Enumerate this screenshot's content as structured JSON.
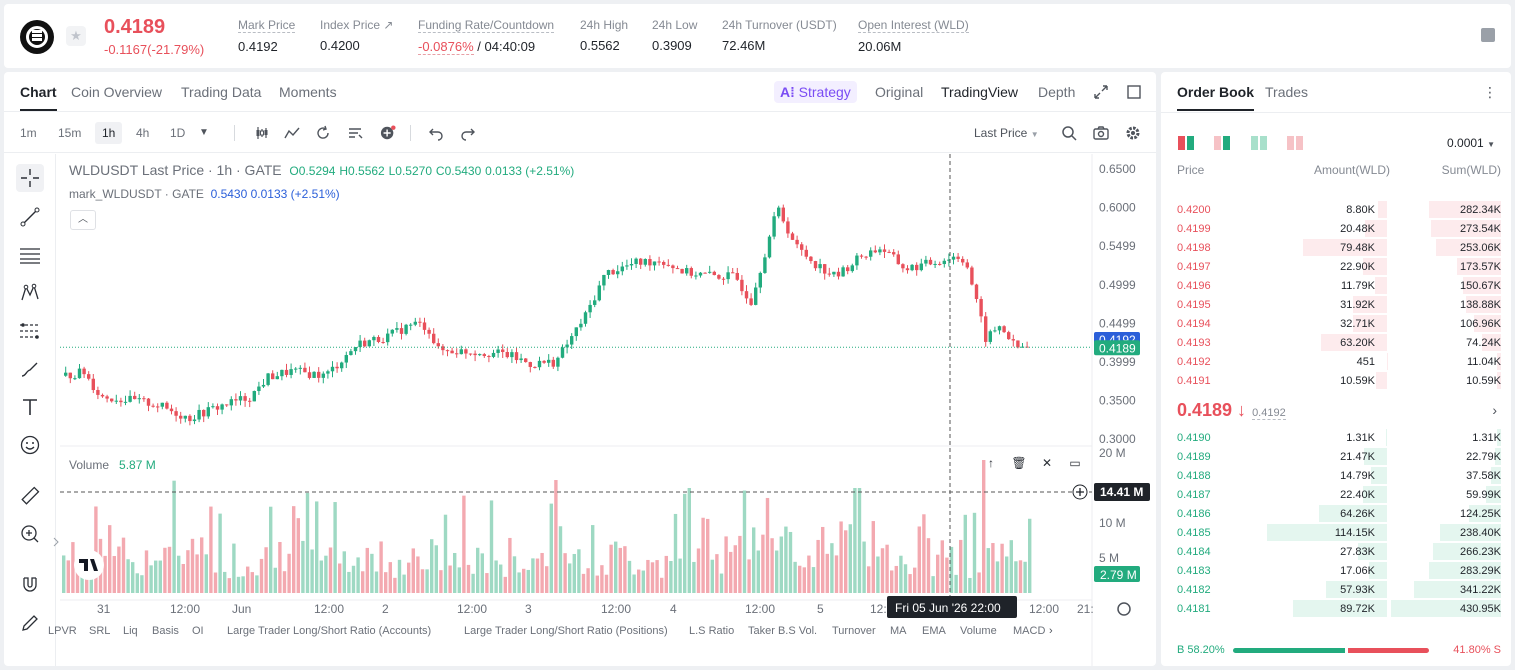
{
  "header": {
    "last_price": "0.4189",
    "change": "-0.1167(-21.79%)",
    "stats": [
      {
        "label": "Mark Price",
        "value": "0.4192"
      },
      {
        "label": "Index Price ↗",
        "value": "0.4200"
      },
      {
        "label": "Funding Rate/Countdown",
        "value_neg": "-0.0876%",
        "value": " / 04:40:09"
      },
      {
        "label": "24h High",
        "value": "0.5562"
      },
      {
        "label": "24h Low",
        "value": "0.3909"
      },
      {
        "label": "24h Turnover (USDT)",
        "value": "72.46M"
      },
      {
        "label": "Open Interest (WLD)",
        "value": "20.06M"
      }
    ]
  },
  "chart_tabs": [
    "Chart",
    "Coin Overview",
    "Trading Data",
    "Moments"
  ],
  "view_tabs": {
    "strategy": "Strategy",
    "original": "Original",
    "tradingview": "TradingView",
    "depth": "Depth"
  },
  "timeframes": [
    "1m",
    "15m",
    "1h",
    "4h",
    "1D"
  ],
  "price_source": "Last Price",
  "legend": {
    "symbol": "WLDUSDT Last Price · 1h · GATE",
    "o": "O0.5294",
    "h": "H0.5562",
    "l": "L0.5270",
    "c": "C0.5430",
    "chg": "0.0133 (+2.51%)",
    "mark_label": "mark_WLDUSDT · GATE",
    "mark_value": "0.5430 0.0133 (+2.51%)"
  },
  "volume_legend": {
    "label": "Volume",
    "value": "5.87 M"
  },
  "price_axis": [
    "0.6500",
    "0.6000",
    "0.5499",
    "0.4999",
    "0.4499",
    "0.3999",
    "0.3500",
    "0.3000"
  ],
  "price_tags": {
    "mark": "0.4192",
    "last": "0.4189"
  },
  "volume_axis": [
    "20 M",
    "10 M",
    "5 M"
  ],
  "volume_tags": {
    "cross": "14.41 M",
    "last": "2.79 M"
  },
  "time_axis": [
    "31",
    "12:00",
    "Jun",
    "12:00",
    "2",
    "12:00",
    "3",
    "12:00",
    "4",
    "12:00",
    "5",
    "12:00",
    "21:"
  ],
  "crosshair_time": "Fri 05 Jun '26   22:00",
  "indicators": [
    "LPVR",
    "SRL",
    "Liq",
    "Basis",
    "OI",
    "Large Trader Long/Short Ratio (Accounts)",
    "Large Trader Long/Short Ratio (Positions)",
    "L.S Ratio",
    "Taker B.S Vol.",
    "Turnover",
    "MA",
    "EMA",
    "Volume",
    "MACD"
  ],
  "chart_data": {
    "type": "candlestick",
    "price_range": [
      0.3,
      0.65
    ],
    "volume_range": [
      0,
      20
    ],
    "volume_unit": "M",
    "candles_ohlc": [],
    "last_price": 0.4189,
    "mark_price": 0.4192
  },
  "orderbook": {
    "tabs": [
      "Order Book",
      "Trades"
    ],
    "precision": "0.0001",
    "headers": {
      "price": "Price",
      "amount": "Amount(WLD)",
      "sum": "Sum(WLD)"
    },
    "asks": [
      {
        "price": "0.4200",
        "amount": "8.80K",
        "sum": "282.34K"
      },
      {
        "price": "0.4199",
        "amount": "20.48K",
        "sum": "273.54K"
      },
      {
        "price": "0.4198",
        "amount": "79.48K",
        "sum": "253.06K"
      },
      {
        "price": "0.4197",
        "amount": "22.90K",
        "sum": "173.57K"
      },
      {
        "price": "0.4196",
        "amount": "11.79K",
        "sum": "150.67K"
      },
      {
        "price": "0.4195",
        "amount": "31.92K",
        "sum": "138.88K"
      },
      {
        "price": "0.4194",
        "amount": "32.71K",
        "sum": "106.96K"
      },
      {
        "price": "0.4193",
        "amount": "63.20K",
        "sum": "74.24K"
      },
      {
        "price": "0.4192",
        "amount": "451",
        "sum": "11.04K"
      },
      {
        "price": "0.4191",
        "amount": "10.59K",
        "sum": "10.59K"
      }
    ],
    "mid_price": "0.4189 ↓",
    "mid_mark": "0.4192",
    "bids": [
      {
        "price": "0.4190",
        "amount": "1.31K",
        "sum": "1.31K"
      },
      {
        "price": "0.4189",
        "amount": "21.47K",
        "sum": "22.79K"
      },
      {
        "price": "0.4188",
        "amount": "14.79K",
        "sum": "37.58K"
      },
      {
        "price": "0.4187",
        "amount": "22.40K",
        "sum": "59.99K"
      },
      {
        "price": "0.4186",
        "amount": "64.26K",
        "sum": "124.25K"
      },
      {
        "price": "0.4185",
        "amount": "114.15K",
        "sum": "238.40K"
      },
      {
        "price": "0.4184",
        "amount": "27.83K",
        "sum": "266.23K"
      },
      {
        "price": "0.4183",
        "amount": "17.06K",
        "sum": "283.29K"
      },
      {
        "price": "0.4182",
        "amount": "57.93K",
        "sum": "341.22K"
      },
      {
        "price": "0.4181",
        "amount": "89.72K",
        "sum": "430.95K"
      }
    ],
    "buy_ratio": "B 58.20%",
    "sell_ratio": "41.80% S",
    "buy_pct": 58.2
  },
  "colors": {
    "up": "#22ab7e",
    "down": "#e8505b",
    "up_fill": "#e6f6f0",
    "down_fill": "#fdecee"
  }
}
